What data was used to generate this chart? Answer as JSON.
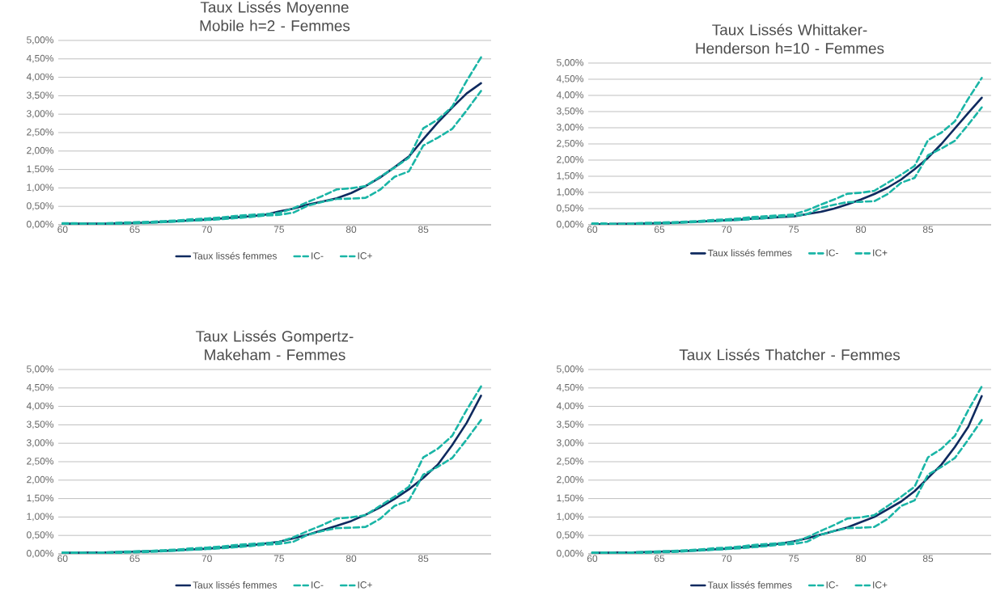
{
  "chart_data": [
    {
      "type": "line",
      "title": "Taux Lissés Moyenne Mobile h=2 - Femmes",
      "x": [
        60,
        61,
        62,
        63,
        64,
        65,
        66,
        67,
        68,
        69,
        70,
        71,
        72,
        73,
        74,
        75,
        76,
        77,
        78,
        79,
        80,
        81,
        82,
        83,
        84,
        85,
        86,
        87,
        88,
        89
      ],
      "xlim": [
        59.7,
        89.7
      ],
      "ylim": [
        0,
        5
      ],
      "xticks": [
        60,
        65,
        70,
        75,
        80,
        85
      ],
      "yticks": [
        {
          "value": 0,
          "label": "0,00%"
        },
        {
          "value": 0.5,
          "label": "0,50%"
        },
        {
          "value": 1,
          "label": "1,00%"
        },
        {
          "value": 1.5,
          "label": "1,50%"
        },
        {
          "value": 2,
          "label": "2,00%"
        },
        {
          "value": 2.5,
          "label": "2,50%"
        },
        {
          "value": 3,
          "label": "3,00%"
        },
        {
          "value": 3.5,
          "label": "3,50%"
        },
        {
          "value": 4,
          "label": "4,00%"
        },
        {
          "value": 4.5,
          "label": "4,50%"
        },
        {
          "value": 5,
          "label": "5,00%"
        }
      ],
      "grid": "y",
      "legend": "bottom",
      "series": [
        {
          "name": "Taux lissés femmes",
          "color": "#0f2a5f",
          "line_style": "solid",
          "values": [
            0.03,
            0.03,
            0.03,
            0.03,
            0.04,
            0.05,
            0.06,
            0.08,
            0.1,
            0.12,
            0.14,
            0.17,
            0.2,
            0.23,
            0.27,
            0.36,
            0.44,
            0.55,
            0.63,
            0.72,
            0.86,
            1.05,
            1.28,
            1.56,
            1.85,
            2.32,
            2.77,
            3.18,
            3.56,
            3.84
          ]
        },
        {
          "name": "IC-",
          "color": "#1ab5a6",
          "line_style": "dashed",
          "values": [
            0.03,
            0.02,
            0.02,
            0.02,
            0.03,
            0.04,
            0.05,
            0.07,
            0.09,
            0.11,
            0.13,
            0.15,
            0.18,
            0.21,
            0.25,
            0.27,
            0.33,
            0.52,
            0.62,
            0.7,
            0.71,
            0.73,
            0.95,
            1.3,
            1.45,
            2.15,
            2.36,
            2.6,
            3.1,
            3.63
          ]
        },
        {
          "name": "IC+",
          "color": "#1ab5a6",
          "line_style": "dashed",
          "values": [
            0.04,
            0.04,
            0.03,
            0.04,
            0.06,
            0.07,
            0.08,
            0.1,
            0.12,
            0.15,
            0.17,
            0.2,
            0.24,
            0.27,
            0.29,
            0.32,
            0.45,
            0.62,
            0.78,
            0.96,
            0.99,
            1.05,
            1.3,
            1.55,
            1.82,
            2.62,
            2.85,
            3.2,
            3.9,
            4.54
          ]
        }
      ]
    },
    {
      "type": "line",
      "title": "Taux Lissés Whittaker-Henderson h=10 - Femmes",
      "x": [
        60,
        61,
        62,
        63,
        64,
        65,
        66,
        67,
        68,
        69,
        70,
        71,
        72,
        73,
        74,
        75,
        76,
        77,
        78,
        79,
        80,
        81,
        82,
        83,
        84,
        85,
        86,
        87,
        88,
        89
      ],
      "xlim": [
        59.7,
        89.7
      ],
      "ylim": [
        0,
        5
      ],
      "xticks": [
        60,
        65,
        70,
        75,
        80,
        85
      ],
      "yticks": [
        {
          "value": 0,
          "label": "0,00%"
        },
        {
          "value": 0.5,
          "label": "0,50%"
        },
        {
          "value": 1,
          "label": "1,00%"
        },
        {
          "value": 1.5,
          "label": "1,50%"
        },
        {
          "value": 2,
          "label": "2,00%"
        },
        {
          "value": 2.5,
          "label": "2,50%"
        },
        {
          "value": 3,
          "label": "3,00%"
        },
        {
          "value": 3.5,
          "label": "3,50%"
        },
        {
          "value": 4,
          "label": "4,00%"
        },
        {
          "value": 4.5,
          "label": "4,50%"
        },
        {
          "value": 5,
          "label": "5,00%"
        }
      ],
      "grid": "y",
      "legend": "bottom",
      "series": [
        {
          "name": "Taux lissés femmes",
          "color": "#0f2a5f",
          "line_style": "solid",
          "values": [
            0.02,
            0.02,
            0.03,
            0.03,
            0.04,
            0.05,
            0.06,
            0.08,
            0.1,
            0.12,
            0.14,
            0.16,
            0.19,
            0.21,
            0.24,
            0.26,
            0.33,
            0.4,
            0.5,
            0.63,
            0.78,
            0.95,
            1.15,
            1.4,
            1.72,
            2.07,
            2.5,
            2.98,
            3.46,
            3.93
          ]
        },
        {
          "name": "IC-",
          "color": "#1ab5a6",
          "line_style": "dashed",
          "values": [
            0.03,
            0.02,
            0.02,
            0.02,
            0.03,
            0.04,
            0.05,
            0.07,
            0.09,
            0.11,
            0.13,
            0.15,
            0.18,
            0.21,
            0.25,
            0.27,
            0.33,
            0.52,
            0.62,
            0.7,
            0.71,
            0.73,
            0.95,
            1.3,
            1.45,
            2.15,
            2.36,
            2.6,
            3.1,
            3.63
          ]
        },
        {
          "name": "IC+",
          "color": "#1ab5a6",
          "line_style": "dashed",
          "values": [
            0.04,
            0.04,
            0.03,
            0.04,
            0.06,
            0.07,
            0.08,
            0.1,
            0.12,
            0.15,
            0.17,
            0.2,
            0.24,
            0.27,
            0.29,
            0.32,
            0.45,
            0.62,
            0.78,
            0.96,
            0.99,
            1.05,
            1.3,
            1.55,
            1.82,
            2.62,
            2.85,
            3.2,
            3.9,
            4.54
          ]
        }
      ]
    },
    {
      "type": "line",
      "title": "Taux Lissés Gompertz-Makeham - Femmes",
      "x": [
        60,
        61,
        62,
        63,
        64,
        65,
        66,
        67,
        68,
        69,
        70,
        71,
        72,
        73,
        74,
        75,
        76,
        77,
        78,
        79,
        80,
        81,
        82,
        83,
        84,
        85,
        86,
        87,
        88,
        89
      ],
      "xlim": [
        59.7,
        89.7
      ],
      "ylim": [
        0,
        5
      ],
      "xticks": [
        60,
        65,
        70,
        75,
        80,
        85
      ],
      "yticks": [
        {
          "value": 0,
          "label": "0,00%"
        },
        {
          "value": 0.5,
          "label": "0,50%"
        },
        {
          "value": 1,
          "label": "1,00%"
        },
        {
          "value": 1.5,
          "label": "1,50%"
        },
        {
          "value": 2,
          "label": "2,00%"
        },
        {
          "value": 2.5,
          "label": "2,50%"
        },
        {
          "value": 3,
          "label": "3,00%"
        },
        {
          "value": 3.5,
          "label": "3,50%"
        },
        {
          "value": 4,
          "label": "4,00%"
        },
        {
          "value": 4.5,
          "label": "4,50%"
        },
        {
          "value": 5,
          "label": "5,00%"
        }
      ],
      "grid": "y",
      "legend": "bottom",
      "series": [
        {
          "name": "Taux lissés femmes",
          "color": "#0f2a5f",
          "line_style": "solid",
          "values": [
            0.03,
            0.03,
            0.04,
            0.04,
            0.05,
            0.06,
            0.07,
            0.08,
            0.1,
            0.12,
            0.14,
            0.17,
            0.2,
            0.23,
            0.28,
            0.33,
            0.42,
            0.52,
            0.64,
            0.76,
            0.89,
            1.06,
            1.26,
            1.49,
            1.75,
            2.06,
            2.42,
            2.95,
            3.55,
            4.29
          ]
        },
        {
          "name": "IC-",
          "color": "#1ab5a6",
          "line_style": "dashed",
          "values": [
            0.03,
            0.02,
            0.02,
            0.02,
            0.03,
            0.04,
            0.05,
            0.07,
            0.09,
            0.11,
            0.13,
            0.15,
            0.18,
            0.21,
            0.25,
            0.27,
            0.33,
            0.52,
            0.62,
            0.7,
            0.71,
            0.73,
            0.95,
            1.3,
            1.45,
            2.15,
            2.36,
            2.6,
            3.1,
            3.63
          ]
        },
        {
          "name": "IC+",
          "color": "#1ab5a6",
          "line_style": "dashed",
          "values": [
            0.04,
            0.04,
            0.03,
            0.04,
            0.06,
            0.07,
            0.08,
            0.1,
            0.12,
            0.15,
            0.17,
            0.2,
            0.24,
            0.27,
            0.29,
            0.32,
            0.45,
            0.62,
            0.78,
            0.96,
            0.99,
            1.05,
            1.3,
            1.55,
            1.82,
            2.62,
            2.85,
            3.2,
            3.9,
            4.54
          ]
        }
      ]
    },
    {
      "type": "line",
      "title": "Taux Lissés Thatcher - Femmes",
      "x": [
        60,
        61,
        62,
        63,
        64,
        65,
        66,
        67,
        68,
        69,
        70,
        71,
        72,
        73,
        74,
        75,
        76,
        77,
        78,
        79,
        80,
        81,
        82,
        83,
        84,
        85,
        86,
        87,
        88,
        89
      ],
      "xlim": [
        59.7,
        89.7
      ],
      "ylim": [
        0,
        5
      ],
      "xticks": [
        60,
        65,
        70,
        75,
        80,
        85
      ],
      "yticks": [
        {
          "value": 0,
          "label": "0,00%"
        },
        {
          "value": 0.5,
          "label": "0,50%"
        },
        {
          "value": 1,
          "label": "1,00%"
        },
        {
          "value": 1.5,
          "label": "1,50%"
        },
        {
          "value": 2,
          "label": "2,00%"
        },
        {
          "value": 2.5,
          "label": "2,50%"
        },
        {
          "value": 3,
          "label": "3,00%"
        },
        {
          "value": 3.5,
          "label": "3,50%"
        },
        {
          "value": 4,
          "label": "4,00%"
        },
        {
          "value": 4.5,
          "label": "4,50%"
        },
        {
          "value": 5,
          "label": "5,00%"
        }
      ],
      "grid": "y",
      "legend": "bottom",
      "series": [
        {
          "name": "Taux lissés femmes",
          "color": "#0f2a5f",
          "line_style": "solid",
          "values": [
            0.03,
            0.03,
            0.04,
            0.04,
            0.05,
            0.06,
            0.07,
            0.08,
            0.1,
            0.12,
            0.14,
            0.17,
            0.2,
            0.23,
            0.28,
            0.34,
            0.42,
            0.52,
            0.62,
            0.72,
            0.86,
            1.0,
            1.21,
            1.42,
            1.7,
            2.06,
            2.42,
            2.9,
            3.45,
            4.28
          ]
        },
        {
          "name": "IC-",
          "color": "#1ab5a6",
          "line_style": "dashed",
          "values": [
            0.03,
            0.02,
            0.02,
            0.02,
            0.03,
            0.04,
            0.05,
            0.07,
            0.09,
            0.11,
            0.13,
            0.15,
            0.18,
            0.21,
            0.25,
            0.27,
            0.33,
            0.52,
            0.62,
            0.7,
            0.71,
            0.73,
            0.95,
            1.3,
            1.45,
            2.15,
            2.36,
            2.6,
            3.1,
            3.63
          ]
        },
        {
          "name": "IC+",
          "color": "#1ab5a6",
          "line_style": "dashed",
          "values": [
            0.04,
            0.04,
            0.03,
            0.04,
            0.06,
            0.07,
            0.08,
            0.1,
            0.12,
            0.15,
            0.17,
            0.2,
            0.24,
            0.27,
            0.29,
            0.32,
            0.45,
            0.62,
            0.78,
            0.96,
            0.99,
            1.05,
            1.3,
            1.55,
            1.82,
            2.62,
            2.85,
            3.2,
            3.9,
            4.54
          ]
        }
      ]
    }
  ]
}
